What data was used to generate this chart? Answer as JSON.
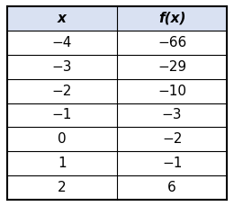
{
  "headers": [
    "x",
    "f(x)"
  ],
  "rows": [
    [
      "−4",
      "−66"
    ],
    [
      "−3",
      "−29"
    ],
    [
      "−2",
      "−10"
    ],
    [
      "−1",
      "−3"
    ],
    [
      "0",
      "−2"
    ],
    [
      "1",
      "−1"
    ],
    [
      "2",
      "6"
    ]
  ],
  "header_bg": "#d9e1f2",
  "row_bg": "#ffffff",
  "border_color": "#000000",
  "header_font_size": 11,
  "row_font_size": 11,
  "text_color": "#000000",
  "header_text_color": "#000000",
  "fig_bg": "#ffffff",
  "outer_border_lw": 1.5,
  "inner_border_lw": 0.8
}
